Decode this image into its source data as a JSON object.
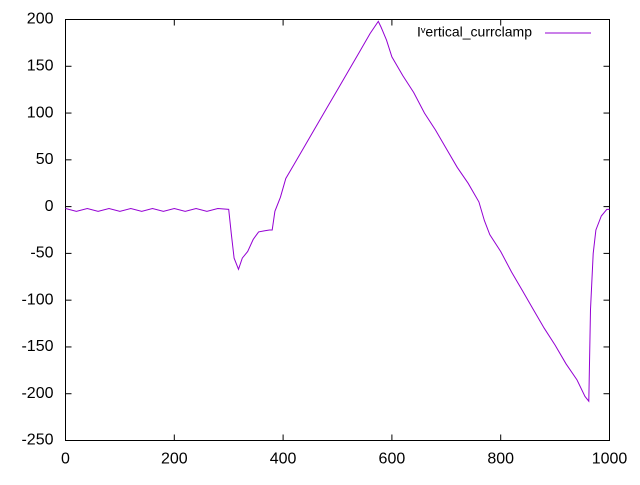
{
  "chart_data": {
    "type": "line",
    "x": [
      0,
      20,
      40,
      60,
      80,
      100,
      120,
      140,
      160,
      180,
      200,
      220,
      240,
      260,
      280,
      300,
      305,
      310,
      318,
      325,
      335,
      345,
      355,
      365,
      375,
      380,
      385,
      395,
      405,
      420,
      440,
      460,
      480,
      500,
      520,
      540,
      560,
      575,
      580,
      590,
      600,
      620,
      640,
      660,
      680,
      700,
      720,
      740,
      760,
      770,
      780,
      800,
      820,
      840,
      860,
      880,
      900,
      920,
      940,
      955,
      962,
      965,
      970,
      975,
      985,
      995,
      1000
    ],
    "series": [
      {
        "name": "Iᵛertical_currclamp",
        "color": "#9400d3",
        "values": [
          -2,
          -5,
          -2,
          -5,
          -2,
          -5,
          -2,
          -5,
          -2,
          -5,
          -2,
          -5,
          -2,
          -5,
          -2,
          -3,
          -30,
          -55,
          -67,
          -55,
          -48,
          -35,
          -27,
          -26,
          -25,
          -25,
          -5,
          10,
          30,
          45,
          65,
          85,
          105,
          125,
          145,
          165,
          185,
          198,
          192,
          178,
          160,
          140,
          122,
          100,
          82,
          62,
          42,
          25,
          5,
          -15,
          -30,
          -48,
          -70,
          -90,
          -110,
          -130,
          -148,
          -168,
          -185,
          -203,
          -208,
          -110,
          -50,
          -25,
          -10,
          -3,
          -3
        ]
      }
    ],
    "xlim": [
      0,
      1000
    ],
    "xticks": [
      0,
      200,
      400,
      600,
      800,
      1000
    ],
    "ylim": [
      -250,
      200
    ],
    "yticks": [
      -250,
      -200,
      -150,
      -100,
      -50,
      0,
      50,
      100,
      150,
      200
    ],
    "legend": "top-right"
  }
}
